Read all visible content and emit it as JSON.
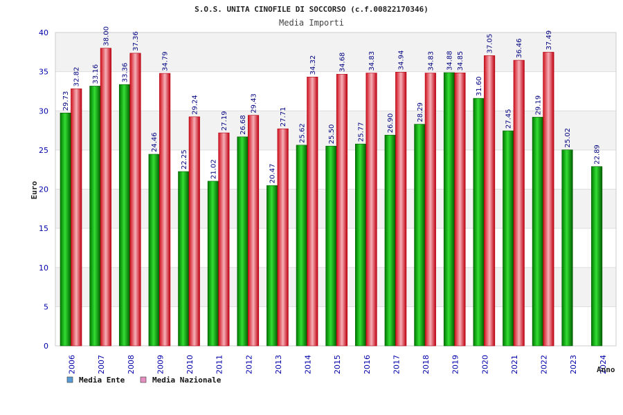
{
  "chart_data": {
    "type": "bar",
    "title": "S.O.S. UNITA CINOFILE DI SOCCORSO (c.f.00822170346)",
    "subtitle": "Media Importi",
    "xlabel": "Anno",
    "ylabel": "Euro",
    "ylim": [
      0,
      40
    ],
    "yticks": [
      0,
      5,
      10,
      15,
      20,
      25,
      30,
      35,
      40
    ],
    "grid": true,
    "legend_position": "bottom-left",
    "categories": [
      "2006",
      "2007",
      "2008",
      "2009",
      "2010",
      "2011",
      "2012",
      "2013",
      "2014",
      "2015",
      "2016",
      "2017",
      "2018",
      "2019",
      "2020",
      "2021",
      "2022",
      "2023",
      "2024"
    ],
    "series": [
      {
        "name": "Media Ente",
        "legend_color": "#5b9bd5",
        "color": "#00a000",
        "values": [
          29.73,
          33.16,
          33.36,
          24.46,
          22.25,
          21.02,
          26.68,
          20.47,
          25.62,
          25.5,
          25.77,
          26.9,
          28.29,
          34.88,
          31.6,
          27.45,
          29.19,
          25.02,
          22.89
        ],
        "labels": [
          "29.73",
          "33.16",
          "33.36",
          "24.46",
          "22.25",
          "21.02",
          "26.68",
          "20.47",
          "25.62",
          "25.50",
          "25.77",
          "26.90",
          "28.29",
          "34.88",
          "31.60",
          "27.45",
          "29.19",
          "25.02",
          "22.89"
        ]
      },
      {
        "name": "Media Nazionale",
        "legend_color": "#e58fc0",
        "color": "#e01020",
        "values": [
          32.82,
          38.0,
          37.36,
          34.79,
          29.24,
          27.19,
          29.43,
          27.71,
          34.32,
          34.68,
          34.83,
          34.94,
          34.83,
          34.85,
          37.05,
          36.46,
          37.49,
          null,
          null
        ],
        "labels": [
          "32.82",
          "38.00",
          "37.36",
          "34.79",
          "29.24",
          "27.19",
          "29.43",
          "27.71",
          "34.32",
          "34.68",
          "34.83",
          "34.94",
          "34.83",
          "34.85",
          "37.05",
          "36.46",
          "37.49",
          null,
          null
        ]
      }
    ]
  }
}
